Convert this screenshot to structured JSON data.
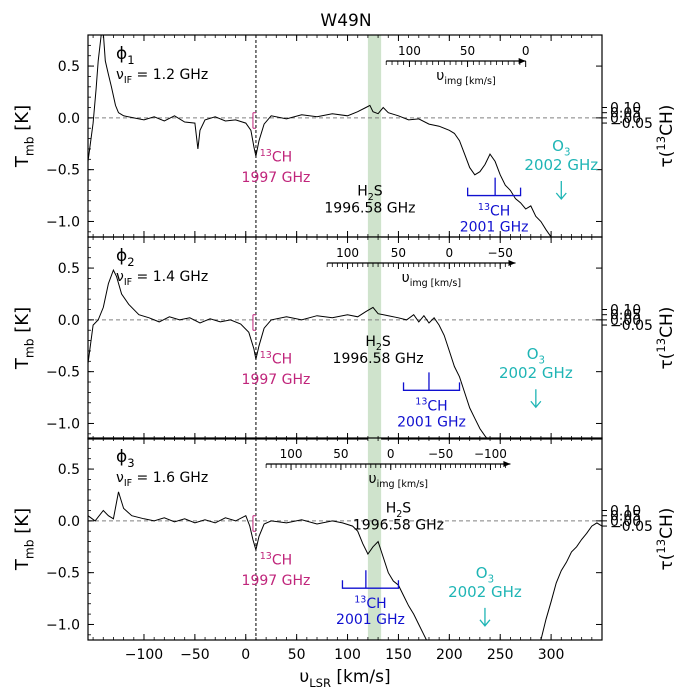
{
  "figure": {
    "title": "W49N",
    "x_label_main": "υ",
    "x_label_sub": "LSR",
    "x_label_unit": "[km/s]",
    "y_label_main": "T",
    "y_label_sub": "mb",
    "y_label_unit": "[K]",
    "y2_label_pre": "τ(",
    "y2_label_sup": "13",
    "y2_label_post": "CH)"
  },
  "colors": {
    "spectrum": "#000000",
    "ch13_mark": "#c0257b",
    "ch13_img": "#1010d0",
    "o3": "#1fb5b5",
    "h2s_band": "#cfe3cc",
    "baseline": "#808080",
    "vline": "#000000"
  },
  "chart_data": {
    "type": "line",
    "xlim": [
      -155,
      350
    ],
    "ylim": [
      -1.15,
      0.8
    ],
    "x_ticks": [
      -100,
      -50,
      0,
      50,
      100,
      150,
      200,
      250,
      300
    ],
    "y_ticks": [
      -1.0,
      -0.5,
      0.0,
      0.5
    ],
    "tau_ticks": [
      -0.05,
      0.0,
      0.05,
      0.1
    ],
    "tau_tick_labels": [
      "−0.05",
      "0.00",
      "0.05",
      "0.10"
    ],
    "v_marker": 10,
    "h2s_band": [
      120,
      133
    ],
    "panels": [
      {
        "phi_label": "ϕ",
        "phi_sub": "1",
        "nu_label": "ν",
        "nu_sub": "IF",
        "nu_value": " = 1.2 GHz",
        "img_axis_label": "υ",
        "img_axis_sub": "img [km/s]",
        "img_ticks": [
          100,
          50,
          0
        ],
        "img_range": [
          120,
          0
        ],
        "img_pos": [
          138,
          275
        ],
        "ch13_label": "13",
        "ch13_label_rest": "CH",
        "ch13_freq": "1997 GHz",
        "h2s_line1": "H",
        "h2s_sub": "2",
        "h2s_rest": "S",
        "h2s_line2": "1996.58 GHz",
        "ch13_img_label": "13",
        "ch13_img_rest": "CH",
        "ch13_img_freq": "2001 GHz",
        "ch13_img_pos": [
          218,
          270
        ],
        "ch13_img_center": 245,
        "o3_label": "O",
        "o3_sub": "3",
        "o3_freq": "2002 GHz",
        "o3_pos": 310,
        "spectrum": [
          [
            -155,
            -0.42
          ],
          [
            -150,
            -0.05
          ],
          [
            -147,
            0.28
          ],
          [
            -145,
            0.55
          ],
          [
            -142,
            0.8
          ],
          [
            -140,
            0.82
          ],
          [
            -138,
            0.55
          ],
          [
            -135,
            0.42
          ],
          [
            -132,
            0.3
          ],
          [
            -128,
            0.12
          ],
          [
            -125,
            0.05
          ],
          [
            -120,
            0.02
          ],
          [
            -110,
            0.0
          ],
          [
            -100,
            -0.02
          ],
          [
            -90,
            0.01
          ],
          [
            -80,
            -0.03
          ],
          [
            -70,
            0.02
          ],
          [
            -60,
            -0.04
          ],
          [
            -50,
            -0.05
          ],
          [
            -47,
            -0.3
          ],
          [
            -45,
            -0.12
          ],
          [
            -40,
            -0.02
          ],
          [
            -30,
            0.01
          ],
          [
            -20,
            -0.03
          ],
          [
            -10,
            -0.02
          ],
          [
            0,
            -0.05
          ],
          [
            5,
            -0.12
          ],
          [
            8,
            -0.28
          ],
          [
            10,
            -0.37
          ],
          [
            13,
            -0.22
          ],
          [
            18,
            -0.06
          ],
          [
            25,
            0.02
          ],
          [
            40,
            -0.01
          ],
          [
            55,
            0.03
          ],
          [
            70,
            0.01
          ],
          [
            85,
            0.04
          ],
          [
            100,
            0.02
          ],
          [
            110,
            0.06
          ],
          [
            118,
            0.1
          ],
          [
            122,
            0.12
          ],
          [
            125,
            0.06
          ],
          [
            130,
            0.04
          ],
          [
            135,
            0.1
          ],
          [
            140,
            0.05
          ],
          [
            150,
            0.02
          ],
          [
            160,
            -0.02
          ],
          [
            170,
            -0.01
          ],
          [
            180,
            -0.06
          ],
          [
            190,
            -0.08
          ],
          [
            200,
            -0.12
          ],
          [
            205,
            -0.15
          ],
          [
            210,
            -0.22
          ],
          [
            215,
            -0.35
          ],
          [
            220,
            -0.48
          ],
          [
            225,
            -0.55
          ],
          [
            230,
            -0.52
          ],
          [
            235,
            -0.45
          ],
          [
            240,
            -0.35
          ],
          [
            245,
            -0.42
          ],
          [
            250,
            -0.55
          ],
          [
            255,
            -0.65
          ],
          [
            260,
            -0.7
          ],
          [
            265,
            -0.78
          ],
          [
            270,
            -0.82
          ],
          [
            275,
            -0.88
          ],
          [
            280,
            -0.85
          ],
          [
            285,
            -0.95
          ],
          [
            290,
            -1.0
          ],
          [
            295,
            -1.08
          ],
          [
            300,
            -1.15
          ]
        ]
      },
      {
        "phi_label": "ϕ",
        "phi_sub": "2",
        "nu_label": "ν",
        "nu_sub": "IF",
        "nu_value": " = 1.4 GHz",
        "img_axis_label": "υ",
        "img_axis_sub": "img [km/s]",
        "img_ticks": [
          100,
          50,
          0,
          -50
        ],
        "img_range": [
          120,
          -65
        ],
        "img_pos": [
          80,
          265
        ],
        "ch13_label": "13",
        "ch13_label_rest": "CH",
        "ch13_freq": "1997 GHz",
        "h2s_line1": "H",
        "h2s_sub": "2",
        "h2s_rest": "S",
        "h2s_line2": "1996.58 GHz",
        "ch13_img_label": "13",
        "ch13_img_rest": "CH",
        "ch13_img_freq": "2001 GHz",
        "ch13_img_pos": [
          155,
          210
        ],
        "ch13_img_center": 180,
        "o3_label": "O",
        "o3_sub": "3",
        "o3_freq": "2002 GHz",
        "o3_pos": 285,
        "spectrum": [
          [
            -155,
            -0.42
          ],
          [
            -150,
            -0.05
          ],
          [
            -145,
            0.0
          ],
          [
            -140,
            0.12
          ],
          [
            -135,
            0.35
          ],
          [
            -130,
            0.48
          ],
          [
            -127,
            0.42
          ],
          [
            -122,
            0.25
          ],
          [
            -115,
            0.15
          ],
          [
            -105,
            0.05
          ],
          [
            -95,
            0.02
          ],
          [
            -85,
            -0.02
          ],
          [
            -75,
            0.03
          ],
          [
            -65,
            0.0
          ],
          [
            -55,
            0.02
          ],
          [
            -45,
            -0.03
          ],
          [
            -35,
            0.01
          ],
          [
            -25,
            -0.02
          ],
          [
            -15,
            0.0
          ],
          [
            -5,
            -0.04
          ],
          [
            3,
            -0.12
          ],
          [
            8,
            -0.28
          ],
          [
            10,
            -0.38
          ],
          [
            13,
            -0.25
          ],
          [
            18,
            -0.08
          ],
          [
            25,
            0.0
          ],
          [
            40,
            0.03
          ],
          [
            55,
            0.0
          ],
          [
            70,
            0.04
          ],
          [
            85,
            0.02
          ],
          [
            100,
            0.05
          ],
          [
            110,
            0.03
          ],
          [
            118,
            0.08
          ],
          [
            125,
            0.12
          ],
          [
            130,
            0.06
          ],
          [
            140,
            0.04
          ],
          [
            150,
            0.02
          ],
          [
            158,
            0.0
          ],
          [
            165,
            0.05
          ],
          [
            170,
            -0.02
          ],
          [
            175,
            0.04
          ],
          [
            180,
            -0.03
          ],
          [
            185,
            0.02
          ],
          [
            190,
            -0.05
          ],
          [
            195,
            -0.15
          ],
          [
            200,
            -0.3
          ],
          [
            205,
            -0.45
          ],
          [
            210,
            -0.55
          ],
          [
            215,
            -0.7
          ],
          [
            220,
            -0.85
          ],
          [
            225,
            -0.95
          ],
          [
            230,
            -1.05
          ],
          [
            235,
            -1.12
          ],
          [
            240,
            -1.18
          ]
        ]
      },
      {
        "phi_label": "ϕ",
        "phi_sub": "3",
        "nu_label": "ν",
        "nu_sub": "IF",
        "nu_value": " = 1.6 GHz",
        "img_axis_label": "υ",
        "img_axis_sub": "img [km/s]",
        "img_ticks": [
          100,
          50,
          0,
          -50,
          -100
        ],
        "img_range": [
          125,
          -120
        ],
        "img_pos": [
          20,
          260
        ],
        "ch13_label": "13",
        "ch13_label_rest": "CH",
        "ch13_freq": "1997 GHz",
        "h2s_line1": "H",
        "h2s_sub": "2",
        "h2s_rest": "S",
        "h2s_line2": "1996.58 GHz",
        "ch13_img_label": "13",
        "ch13_img_rest": "CH",
        "ch13_img_freq": "2001 GHz",
        "ch13_img_pos": [
          95,
          150
        ],
        "ch13_img_center": 118,
        "o3_label": "O",
        "o3_sub": "3",
        "o3_freq": "2002 GHz",
        "o3_pos": 235,
        "spectrum": [
          [
            -155,
            0.05
          ],
          [
            -148,
            0.0
          ],
          [
            -140,
            0.1
          ],
          [
            -135,
            0.05
          ],
          [
            -130,
            0.02
          ],
          [
            -125,
            0.28
          ],
          [
            -120,
            0.12
          ],
          [
            -112,
            0.05
          ],
          [
            -100,
            0.02
          ],
          [
            -90,
            0.0
          ],
          [
            -80,
            0.03
          ],
          [
            -70,
            -0.01
          ],
          [
            -60,
            0.02
          ],
          [
            -50,
            -0.02
          ],
          [
            -40,
            0.01
          ],
          [
            -30,
            -0.02
          ],
          [
            -20,
            0.03
          ],
          [
            -10,
            0.0
          ],
          [
            0,
            0.05
          ],
          [
            4,
            -0.05
          ],
          [
            7,
            -0.18
          ],
          [
            10,
            -0.28
          ],
          [
            13,
            -0.15
          ],
          [
            18,
            -0.03
          ],
          [
            25,
            0.0
          ],
          [
            40,
            -0.02
          ],
          [
            55,
            0.01
          ],
          [
            70,
            -0.03
          ],
          [
            85,
            0.0
          ],
          [
            95,
            -0.02
          ],
          [
            105,
            -0.05
          ],
          [
            110,
            -0.1
          ],
          [
            115,
            -0.22
          ],
          [
            120,
            -0.32
          ],
          [
            125,
            -0.25
          ],
          [
            130,
            -0.2
          ],
          [
            135,
            -0.35
          ],
          [
            140,
            -0.5
          ],
          [
            145,
            -0.58
          ],
          [
            150,
            -0.62
          ],
          [
            155,
            -0.72
          ],
          [
            160,
            -0.82
          ],
          [
            165,
            -0.9
          ],
          [
            170,
            -1.0
          ],
          [
            175,
            -1.1
          ],
          [
            180,
            -1.2
          ],
          null,
          [
            290,
            -1.15
          ],
          [
            295,
            -0.95
          ],
          [
            300,
            -0.78
          ],
          [
            305,
            -0.6
          ],
          [
            310,
            -0.48
          ],
          [
            315,
            -0.4
          ],
          [
            320,
            -0.3
          ],
          [
            325,
            -0.25
          ],
          [
            330,
            -0.18
          ],
          [
            335,
            -0.12
          ],
          [
            340,
            -0.05
          ],
          [
            345,
            -0.02
          ],
          [
            350,
            -0.05
          ]
        ]
      }
    ]
  }
}
